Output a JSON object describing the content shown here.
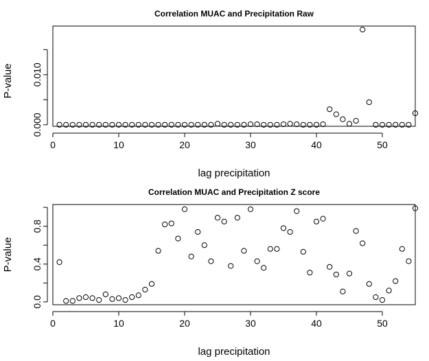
{
  "chart_data": [
    {
      "type": "scatter",
      "title": "Correlation MUAC and Precipitation Raw",
      "xlabel": "lag precipitation",
      "ylabel": "P-value",
      "xlim": [
        0,
        55
      ],
      "ylim": [
        -0.0003,
        0.0197
      ],
      "x_ticks": [
        0,
        10,
        20,
        30,
        40,
        50
      ],
      "y_ticks": [
        0.0,
        0.01
      ],
      "y_tick_labels": [
        "0.000",
        "0.010"
      ],
      "y_minor_ticks": [
        0.005,
        0.015
      ],
      "marker": "open-circle",
      "grid": false,
      "x": [
        1,
        2,
        3,
        4,
        5,
        6,
        7,
        8,
        9,
        10,
        11,
        12,
        13,
        14,
        15,
        16,
        17,
        18,
        19,
        20,
        21,
        22,
        23,
        24,
        25,
        26,
        27,
        28,
        29,
        30,
        31,
        32,
        33,
        34,
        35,
        36,
        37,
        38,
        39,
        40,
        41,
        42,
        43,
        44,
        45,
        46,
        47,
        48,
        49,
        50,
        51,
        52,
        53,
        54,
        55
      ],
      "y": [
        0.0,
        0.0,
        0.0,
        0.0,
        0.0,
        0.0,
        0.0,
        0.0,
        0.0,
        0.0,
        0.0,
        0.0,
        0.0,
        0.0,
        0.0,
        0.0,
        0.0,
        0.0,
        0.0,
        0.0,
        0.0,
        0.0,
        0.0,
        0.0,
        0.0002,
        0.0,
        0.0,
        0.0,
        0.0,
        0.0001,
        0.0001,
        0.0,
        0.0,
        0.0,
        0.0001,
        0.0002,
        0.0001,
        0.0,
        0.0,
        0.0,
        0.0001,
        0.0031,
        0.0021,
        0.0011,
        0.0002,
        0.0008,
        0.019,
        0.0045,
        0.0,
        0.0,
        0.0,
        0.0,
        0.0,
        0.0,
        0.0023
      ]
    },
    {
      "type": "scatter",
      "title": "Correlation MUAC and Precipitation Z score",
      "xlabel": "lag precipitation",
      "ylabel": "P-value",
      "xlim": [
        0,
        55
      ],
      "ylim": [
        -0.03,
        1.03
      ],
      "x_ticks": [
        0,
        10,
        20,
        30,
        40,
        50
      ],
      "y_ticks": [
        0.0,
        0.4,
        0.8
      ],
      "y_tick_labels": [
        "0.0",
        "0.4",
        "0.8"
      ],
      "y_minor_ticks": [
        0.2,
        0.6,
        1.0
      ],
      "marker": "open-circle",
      "grid": false,
      "x": [
        1,
        2,
        3,
        4,
        5,
        6,
        7,
        8,
        9,
        10,
        11,
        12,
        13,
        14,
        15,
        16,
        17,
        18,
        19,
        20,
        21,
        22,
        23,
        24,
        25,
        26,
        27,
        28,
        29,
        30,
        31,
        32,
        33,
        34,
        35,
        36,
        37,
        38,
        39,
        40,
        41,
        42,
        43,
        44,
        45,
        46,
        47,
        48,
        49,
        50,
        51,
        52,
        53,
        54,
        55
      ],
      "y": [
        0.42,
        0.01,
        0.01,
        0.04,
        0.05,
        0.04,
        0.02,
        0.08,
        0.03,
        0.04,
        0.02,
        0.05,
        0.07,
        0.13,
        0.19,
        0.54,
        0.82,
        0.83,
        0.67,
        0.98,
        0.48,
        0.74,
        0.6,
        0.43,
        0.89,
        0.85,
        0.38,
        0.89,
        0.54,
        0.98,
        0.43,
        0.36,
        0.56,
        0.56,
        0.78,
        0.74,
        0.96,
        0.53,
        0.31,
        0.85,
        0.88,
        0.37,
        0.29,
        0.11,
        0.3,
        0.75,
        0.62,
        0.19,
        0.05,
        0.02,
        0.12,
        0.22,
        0.56,
        0.43,
        0.99
      ]
    }
  ]
}
